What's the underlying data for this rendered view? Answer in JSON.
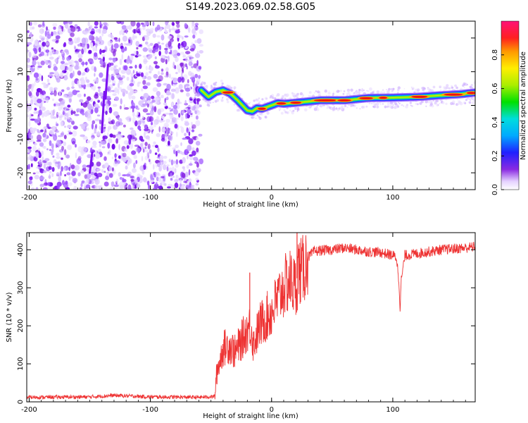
{
  "title": "S149.2023.069.02.58.G05",
  "chart_data": [
    {
      "type": "heatmap",
      "xlabel": "Height of straight line (km)",
      "ylabel": "Frequency (Hz)",
      "xlim": [
        -202,
        168
      ],
      "ylim": [
        -25,
        25
      ],
      "x_ticks": [
        -200,
        -100,
        0,
        100
      ],
      "y_ticks": [
        -20,
        -10,
        0,
        10,
        20
      ],
      "noise_region_x": [
        -202,
        -58
      ],
      "ridge": {
        "x": [
          -58,
          -52,
          -46,
          -40,
          -34,
          -28,
          -24,
          -20,
          -16,
          -12,
          -8,
          -4,
          0,
          5,
          10,
          20,
          40,
          60,
          80,
          100,
          120,
          140,
          155,
          168
        ],
        "y": [
          4.5,
          2.5,
          4.0,
          4.5,
          3.5,
          1.5,
          0.0,
          -1.5,
          -1.8,
          -0.8,
          -1.0,
          -0.5,
          0.0,
          0.7,
          0.5,
          0.8,
          1.5,
          1.5,
          2.2,
          2.3,
          2.5,
          3.0,
          3.3,
          3.8
        ]
      },
      "colorbar": {
        "label": "Normalized spectral amplitude",
        "range": [
          0.0,
          1.0
        ],
        "ticks": [
          "0.0",
          "0.2",
          "0.4",
          "0.6",
          "0.8"
        ],
        "colormap": "rainbow"
      },
      "grid": false
    },
    {
      "type": "line",
      "xlabel": "Height of straight line (km)",
      "ylabel": "SNR (10 * v/v)",
      "xlim": [
        -202,
        168
      ],
      "ylim": [
        0,
        445
      ],
      "x_ticks": [
        -200,
        -100,
        0,
        100
      ],
      "y_ticks": [
        0,
        100,
        200,
        300,
        400
      ],
      "series": [
        {
          "color": "#ee3333",
          "x": [
            -202,
            -150,
            -130,
            -100,
            -60,
            -47,
            -45,
            -40,
            -35,
            -30,
            -25,
            -20,
            -17,
            -15,
            -10,
            -5,
            0,
            5,
            10,
            15,
            20,
            22,
            25,
            30,
            35,
            40,
            50,
            60,
            70,
            80,
            90,
            100,
            103,
            105,
            106,
            107,
            110,
            120,
            140,
            160,
            168
          ],
          "y": [
            12,
            13,
            17,
            13,
            12,
            14,
            80,
            140,
            150,
            130,
            160,
            190,
            200,
            150,
            200,
            220,
            235,
            270,
            300,
            320,
            300,
            350,
            340,
            380,
            395,
            398,
            400,
            405,
            400,
            395,
            393,
            385,
            380,
            320,
            250,
            320,
            385,
            390,
            400,
            405,
            408
          ]
        }
      ],
      "grid": false
    }
  ]
}
